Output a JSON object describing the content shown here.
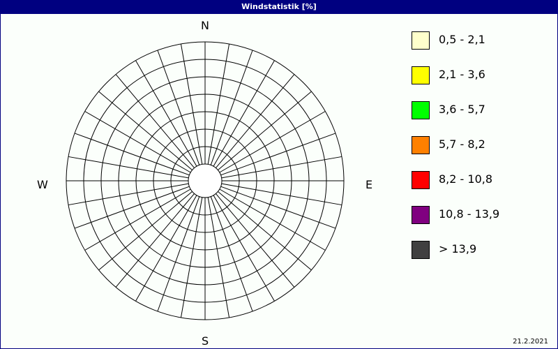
{
  "title": "Windstatistik [%]",
  "date": "21.2.2021",
  "chart_data": {
    "type": "wind-rose",
    "title": "Windstatistik [%]",
    "directions": {
      "n": "N",
      "e": "E",
      "s": "S",
      "w": "W"
    },
    "sector_count": 36,
    "ring_count": 7,
    "series": [],
    "legend": [
      {
        "label": "0,5 - 2,1",
        "color": "#ffffcc"
      },
      {
        "label": "2,1 - 3,6",
        "color": "#ffff00"
      },
      {
        "label": "3,6 - 5,7",
        "color": "#00ff00"
      },
      {
        "label": "5,7 - 8,2",
        "color": "#ff8000"
      },
      {
        "label": "8,2 - 10,8",
        "color": "#ff0000"
      },
      {
        "label": "10,8 - 13,9",
        "color": "#800080"
      },
      {
        "label": " > 13,9",
        "color": "#404040"
      }
    ]
  }
}
